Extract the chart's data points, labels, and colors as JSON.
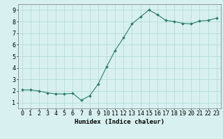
{
  "x": [
    0,
    1,
    2,
    3,
    4,
    5,
    6,
    7,
    8,
    9,
    10,
    11,
    12,
    13,
    14,
    15,
    16,
    17,
    18,
    19,
    20,
    21,
    22,
    23
  ],
  "y": [
    2.1,
    2.1,
    2.0,
    1.85,
    1.75,
    1.75,
    1.8,
    1.2,
    1.6,
    2.6,
    4.1,
    5.5,
    6.6,
    7.8,
    8.4,
    9.0,
    8.6,
    8.1,
    8.0,
    7.85,
    7.8,
    8.05,
    8.1,
    8.3
  ],
  "line_color": "#2e7d6e",
  "marker": "D",
  "marker_size": 2.0,
  "bg_color": "#d8f0f0",
  "grid_color": "#b0d8d8",
  "xlabel": "Humidex (Indice chaleur)",
  "xlim": [
    -0.5,
    23.5
  ],
  "ylim": [
    0.5,
    9.5
  ],
  "xticks": [
    0,
    1,
    2,
    3,
    4,
    5,
    6,
    7,
    8,
    9,
    10,
    11,
    12,
    13,
    14,
    15,
    16,
    17,
    18,
    19,
    20,
    21,
    22,
    23
  ],
  "yticks": [
    1,
    2,
    3,
    4,
    5,
    6,
    7,
    8,
    9
  ],
  "xlabel_fontsize": 6.5,
  "tick_fontsize": 6.0,
  "figsize": [
    3.2,
    2.0
  ],
  "dpi": 100
}
